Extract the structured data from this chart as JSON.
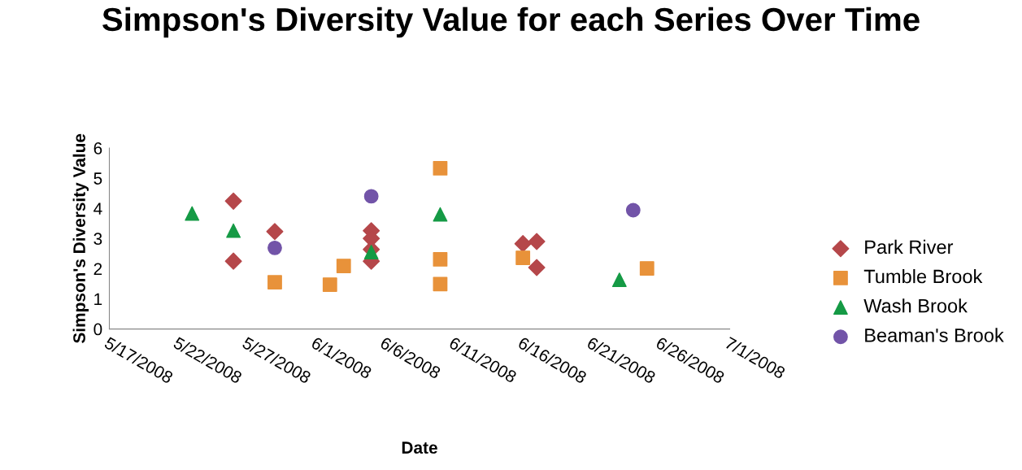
{
  "chart_data": {
    "type": "scatter",
    "title": "Simpson's Diversity Value for each Series Over Time",
    "xlabel": "Date",
    "ylabel": "Simpson's Diversity Value",
    "series": [
      {
        "name": "Park River",
        "color": "#b5474a",
        "marker": "diamond",
        "x": [
          "2008-05-26",
          "2008-05-26",
          "2008-05-29",
          "2008-06-05",
          "2008-06-05",
          "2008-06-05",
          "2008-06-05",
          "2008-06-16",
          "2008-06-17",
          "2008-06-17"
        ],
        "values": [
          4.24,
          2.25,
          3.23,
          3.26,
          3.0,
          2.64,
          2.25,
          2.83,
          2.9,
          2.04
        ]
      },
      {
        "name": "Tumble Brook",
        "color": "#e8923a",
        "marker": "square",
        "x": [
          "2008-05-29",
          "2008-06-02",
          "2008-06-03",
          "2008-06-10",
          "2008-06-10",
          "2008-06-10",
          "2008-06-16",
          "2008-06-25"
        ],
        "values": [
          1.55,
          1.47,
          2.09,
          5.33,
          2.31,
          1.49,
          2.36,
          2.01
        ]
      },
      {
        "name": "Wash Brook",
        "color": "#159a45",
        "marker": "triangle",
        "x": [
          "2008-05-23",
          "2008-05-26",
          "2008-06-05",
          "2008-06-10",
          "2008-06-23"
        ],
        "values": [
          3.83,
          3.26,
          2.55,
          3.8,
          1.63
        ]
      },
      {
        "name": "Beaman's Brook",
        "color": "#7254a8",
        "marker": "circle",
        "x": [
          "2008-05-29",
          "2008-06-05",
          "2008-06-24"
        ],
        "values": [
          2.69,
          4.4,
          3.94
        ]
      }
    ],
    "xlim": [
      "2008-05-17",
      "2008-07-01"
    ],
    "xticks": [
      {
        "value": "2008-05-17",
        "label": "5/17/2008"
      },
      {
        "value": "2008-05-22",
        "label": "5/22/2008"
      },
      {
        "value": "2008-05-27",
        "label": "5/27/2008"
      },
      {
        "value": "2008-06-01",
        "label": "6/1/2008"
      },
      {
        "value": "2008-06-06",
        "label": "6/6/2008"
      },
      {
        "value": "2008-06-11",
        "label": "6/11/2008"
      },
      {
        "value": "2008-06-16",
        "label": "6/16/2008"
      },
      {
        "value": "2008-06-21",
        "label": "6/21/2008"
      },
      {
        "value": "2008-06-26",
        "label": "6/26/2008"
      },
      {
        "value": "2008-07-01",
        "label": "7/1/2008"
      }
    ],
    "ylim": [
      0,
      6
    ],
    "yticks": [
      0,
      1,
      2,
      3,
      4,
      5,
      6
    ],
    "grid": false,
    "legend": "right"
  }
}
